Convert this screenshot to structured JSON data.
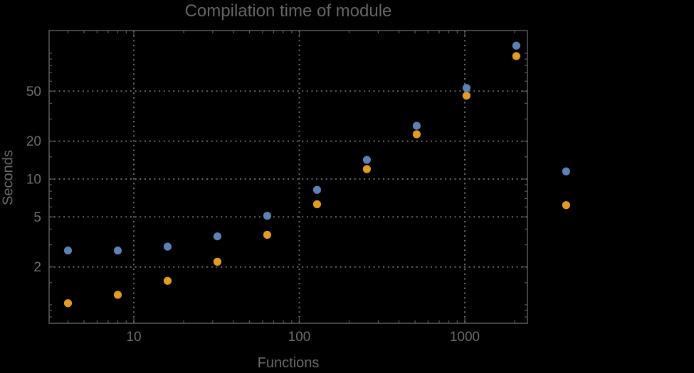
{
  "page": {
    "background": "#000000"
  },
  "chart_data": {
    "type": "scatter",
    "title": "Compilation time of module",
    "xlabel": "Functions",
    "ylabel": "Seconds",
    "x_scale": "log",
    "y_scale": "log",
    "xlim": [
      3.05,
      2370
    ],
    "ylim": [
      0.72,
      148
    ],
    "grid": "dotted",
    "legend": "none",
    "x": [
      4,
      8,
      16,
      32,
      64,
      128,
      256,
      512,
      1024,
      2048,
      4096
    ],
    "series": [
      {
        "name": "series-blue",
        "color": "#5e81b5",
        "values": [
          2.7,
          2.7,
          2.9,
          3.5,
          5.1,
          8.2,
          14.2,
          26.5,
          53,
          115,
          11.5
        ]
      },
      {
        "name": "series-orange",
        "color": "#e19c24",
        "values": [
          1.03,
          1.2,
          1.55,
          2.2,
          3.6,
          6.3,
          12,
          22.7,
          46,
          95,
          6.2
        ]
      }
    ],
    "x_ticks_labeled": [
      10,
      100,
      1000
    ],
    "y_ticks_labeled": [
      2,
      5,
      10,
      20,
      50
    ],
    "x_ticks_minor": [
      4,
      5,
      6,
      7,
      8,
      9,
      20,
      30,
      40,
      50,
      60,
      70,
      80,
      90,
      200,
      300,
      400,
      500,
      600,
      700,
      800,
      900,
      2000
    ],
    "y_ticks_minor": [
      0.8,
      0.9,
      1,
      1.5,
      3,
      4,
      6,
      7,
      8,
      9,
      15,
      30,
      40,
      60,
      70,
      80,
      90,
      100
    ]
  },
  "style": {
    "frame_color": "#5c5c5c",
    "grid_color": "#6b6b6b",
    "tick_color": "#5c5c5c",
    "tick_label_color": "#6e6e6e",
    "axis_label_color": "#6b6b6b",
    "title_color": "#666666",
    "point_radius": 5.6
  }
}
